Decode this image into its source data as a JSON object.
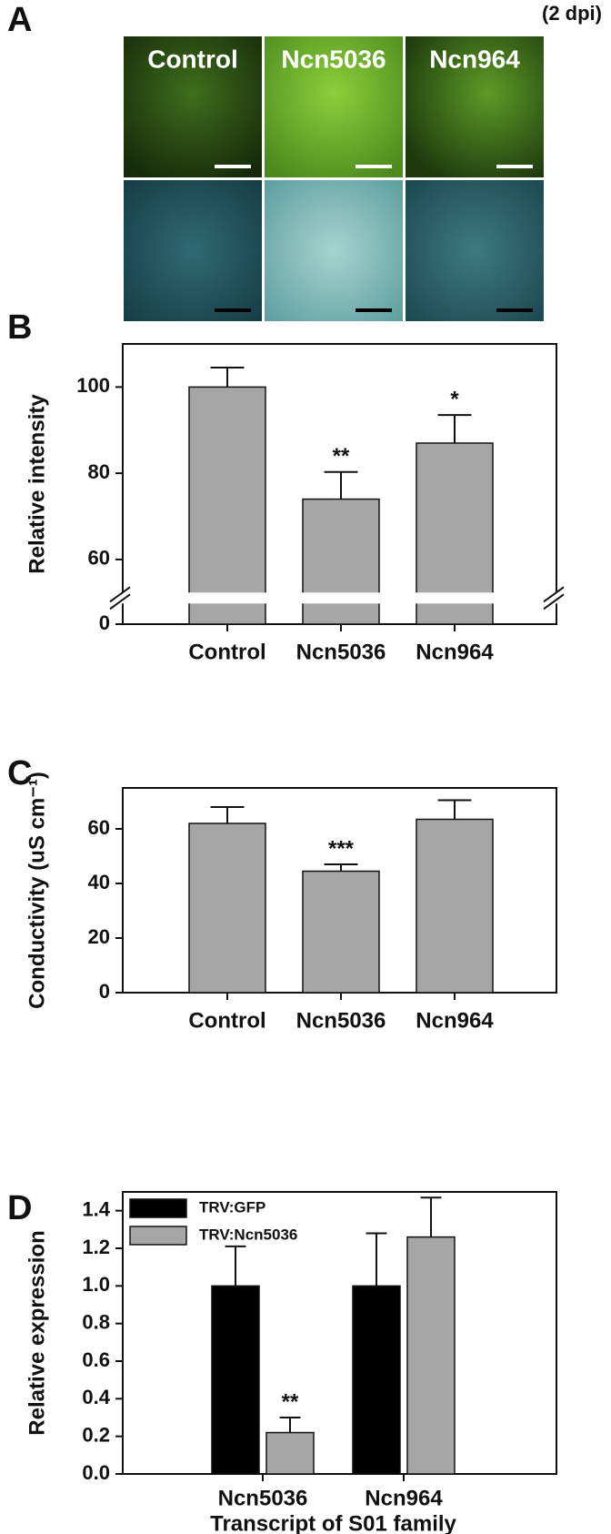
{
  "panel_a": {
    "label": "A",
    "note": "(2 dpi)",
    "columns": [
      "Control",
      "Ncn5036",
      "Ncn964"
    ]
  },
  "chart_data": [
    {
      "type": "bar",
      "panel_label": "B",
      "y_label": "Relative intensity",
      "categories": [
        "Control",
        "Ncn5036",
        "Ncn964"
      ],
      "values": [
        100,
        74,
        87
      ],
      "errors": [
        4.5,
        6.3,
        6.5
      ],
      "annotations": [
        null,
        "**",
        "*"
      ],
      "color": "#a6a6a6",
      "ylim": [
        0,
        110
      ],
      "yticks": [
        0,
        60,
        80,
        100
      ],
      "axis_break": [
        5,
        50
      ],
      "grid": false
    },
    {
      "type": "bar",
      "panel_label": "C",
      "y_label": "Conductivity (uS cm⁻¹)",
      "categories": [
        "Control",
        "Ncn5036",
        "Ncn964"
      ],
      "values": [
        62,
        44.5,
        63.5
      ],
      "errors": [
        6,
        2.5,
        7
      ],
      "annotations": [
        null,
        "***",
        null
      ],
      "color": "#a6a6a6",
      "ylim": [
        0,
        75
      ],
      "yticks": [
        0,
        20,
        40,
        60
      ],
      "grid": false
    },
    {
      "type": "bar",
      "panel_label": "D",
      "y_label": "Relative expression",
      "x_label": "Transcript of S01 family",
      "categories": [
        "Ncn5036",
        "Ncn964"
      ],
      "series": [
        {
          "name": "TRV:GFP",
          "color": "#000000",
          "values": [
            1.0,
            1.0
          ],
          "errors": [
            0.21,
            0.28
          ],
          "annotations": [
            null,
            null
          ]
        },
        {
          "name": "TRV:Ncn5036",
          "color": "#a6a6a6",
          "values": [
            0.22,
            1.26
          ],
          "errors": [
            0.08,
            0.21
          ],
          "annotations": [
            "**",
            null
          ]
        }
      ],
      "ylim": [
        0,
        1.5
      ],
      "yticks": [
        {
          "value": 0,
          "label": "0.0"
        },
        {
          "value": 0.2,
          "label": "0.2"
        },
        {
          "value": 0.4,
          "label": "0.4"
        },
        {
          "value": 0.6,
          "label": "0.6"
        },
        {
          "value": 0.8,
          "label": "0.8"
        },
        {
          "value": 1.0,
          "label": "1.0"
        },
        {
          "value": 1.2,
          "label": "1.2"
        },
        {
          "value": 1.4,
          "label": "1.4"
        }
      ],
      "legend": "upper left",
      "grid": false
    }
  ]
}
